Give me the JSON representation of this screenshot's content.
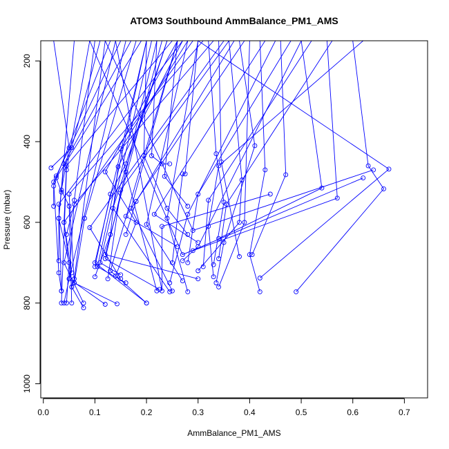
{
  "chart_data": {
    "type": "line",
    "title": "ATOM3 Southbound AmmBalance_PM1_AMS",
    "xlabel": "AmmBalance_PM1_AMS",
    "ylabel": "Pressure (mbar)",
    "xlim": [
      -0.005,
      0.745
    ],
    "ylim": [
      1035,
      150
    ],
    "y_reversed": true,
    "x_ticks": [
      0.0,
      0.1,
      0.2,
      0.3,
      0.4,
      0.5,
      0.6,
      0.7
    ],
    "x_tick_labels": [
      "0.0",
      "0.1",
      "0.2",
      "0.3",
      "0.4",
      "0.5",
      "0.6",
      "0.7"
    ],
    "y_ticks": [
      200,
      400,
      600,
      800,
      1000
    ],
    "y_tick_labels": [
      "200",
      "400",
      "600",
      "800",
      "1000"
    ],
    "series_color": "#0000ff",
    "grid": false,
    "legend": "none",
    "profiles": [
      [
        [
          0.02,
          150
        ],
        [
          0.05,
          415
        ],
        [
          0.035,
          520
        ],
        [
          0.05,
          560
        ],
        [
          0.055,
          800
        ]
      ],
      [
        [
          0.06,
          150
        ],
        [
          0.03,
          590
        ],
        [
          0.05,
          700
        ],
        [
          0.045,
          800
        ]
      ],
      [
        [
          0.09,
          150
        ],
        [
          0.045,
          470
        ],
        [
          0.035,
          800
        ]
      ],
      [
        [
          0.1,
          150
        ],
        [
          0.06,
          545
        ],
        [
          0.05,
          740
        ],
        [
          0.04,
          800
        ]
      ],
      [
        [
          0.12,
          150
        ],
        [
          0.06,
          740
        ],
        [
          0.055,
          760
        ],
        [
          0.078,
          812
        ]
      ],
      [
        [
          0.14,
          150
        ],
        [
          0.04,
          700
        ],
        [
          0.078,
          800
        ]
      ],
      [
        [
          0.16,
          150
        ],
        [
          0.05,
          740
        ],
        [
          0.12,
          803
        ]
      ],
      [
        [
          0.18,
          150
        ],
        [
          0.08,
          590
        ],
        [
          0.06,
          750
        ],
        [
          0.143,
          802
        ]
      ],
      [
        [
          0.2,
          150
        ],
        [
          0.1,
          700
        ],
        [
          0.2,
          800
        ]
      ],
      [
        [
          0.22,
          150
        ],
        [
          0.12,
          690
        ],
        [
          0.225,
          766
        ]
      ],
      [
        [
          0.24,
          150
        ],
        [
          0.135,
          565
        ],
        [
          0.245,
          772
        ]
      ],
      [
        [
          0.26,
          150
        ],
        [
          0.17,
          565
        ],
        [
          0.25,
          770
        ]
      ],
      [
        [
          0.28,
          150
        ],
        [
          0.2,
          605
        ],
        [
          0.27,
          745
        ]
      ],
      [
        [
          0.3,
          150
        ],
        [
          0.24,
          590
        ],
        [
          0.28,
          772
        ]
      ],
      [
        [
          0.32,
          150
        ],
        [
          0.335,
          430
        ],
        [
          0.35,
          550
        ],
        [
          0.33,
          705
        ]
      ],
      [
        [
          0.34,
          150
        ],
        [
          0.345,
          450
        ],
        [
          0.38,
          685
        ]
      ],
      [
        [
          0.36,
          150
        ],
        [
          0.385,
          495
        ],
        [
          0.38,
          600
        ],
        [
          0.3,
          720
        ]
      ],
      [
        [
          0.38,
          150
        ],
        [
          0.41,
          410
        ],
        [
          0.35,
          650
        ],
        [
          0.335,
          750
        ]
      ],
      [
        [
          0.4,
          150
        ],
        [
          0.39,
          600
        ],
        [
          0.34,
          760
        ]
      ],
      [
        [
          0.42,
          150
        ],
        [
          0.43,
          470
        ],
        [
          0.4,
          680
        ],
        [
          0.42,
          772
        ]
      ],
      [
        [
          0.46,
          150
        ],
        [
          0.47,
          482
        ],
        [
          0.405,
          680
        ]
      ],
      [
        [
          0.5,
          150
        ],
        [
          0.54,
          515
        ],
        [
          0.34,
          640
        ]
      ],
      [
        [
          0.55,
          150
        ],
        [
          0.57,
          540
        ],
        [
          0.29,
          670
        ]
      ],
      [
        [
          0.6,
          150
        ],
        [
          0.63,
          460
        ],
        [
          0.66,
          517
        ],
        [
          0.49,
          772
        ]
      ],
      [
        [
          0.3,
          150
        ],
        [
          0.67,
          468
        ],
        [
          0.42,
          738
        ]
      ],
      [
        [
          0.26,
          150
        ],
        [
          0.12,
          475
        ],
        [
          0.18,
          600
        ],
        [
          0.14,
          733
        ]
      ],
      [
        [
          0.28,
          150
        ],
        [
          0.15,
          418
        ],
        [
          0.16,
          475
        ],
        [
          0.22,
          770
        ]
      ],
      [
        [
          0.24,
          150
        ],
        [
          0.16,
          455
        ],
        [
          0.13,
          530
        ],
        [
          0.1,
          710
        ]
      ],
      [
        [
          0.2,
          150
        ],
        [
          0.195,
          435
        ],
        [
          0.24,
          565
        ],
        [
          0.28,
          630
        ]
      ],
      [
        [
          0.22,
          150
        ],
        [
          0.21,
          435
        ],
        [
          0.23,
          455
        ],
        [
          0.245,
          455
        ]
      ],
      [
        [
          0.3,
          150
        ],
        [
          0.275,
          480
        ],
        [
          0.27,
          480
        ],
        [
          0.25,
          700
        ]
      ],
      [
        [
          0.26,
          150
        ],
        [
          0.235,
          486
        ],
        [
          0.28,
          560
        ]
      ],
      [
        [
          0.27,
          150
        ],
        [
          0.145,
          462
        ],
        [
          0.13,
          630
        ],
        [
          0.1,
          735
        ]
      ],
      [
        [
          0.11,
          150
        ],
        [
          0.055,
          415
        ],
        [
          0.015,
          465
        ]
      ],
      [
        [
          0.13,
          150
        ],
        [
          0.025,
          490
        ],
        [
          0.035,
          525
        ]
      ],
      [
        [
          0.15,
          150
        ],
        [
          0.025,
          485
        ],
        [
          0.02,
          510
        ],
        [
          0.02,
          560
        ]
      ],
      [
        [
          0.17,
          150
        ],
        [
          0.04,
          455
        ],
        [
          0.03,
          590
        ],
        [
          0.03,
          695
        ]
      ],
      [
        [
          0.19,
          150
        ],
        [
          0.02,
          500
        ],
        [
          0.03,
          725
        ],
        [
          0.035,
          770
        ]
      ],
      [
        [
          0.25,
          150
        ],
        [
          0.045,
          460
        ],
        [
          0.04,
          600
        ],
        [
          0.055,
          725
        ]
      ],
      [
        [
          0.27,
          150
        ],
        [
          0.03,
          555
        ],
        [
          0.035,
          770
        ]
      ],
      [
        [
          0.29,
          150
        ],
        [
          0.04,
          600
        ],
        [
          0.055,
          760
        ]
      ],
      [
        [
          0.31,
          150
        ],
        [
          0.05,
          530
        ],
        [
          0.06,
          750
        ]
      ],
      [
        [
          0.33,
          150
        ],
        [
          0.06,
          555
        ],
        [
          0.045,
          630
        ]
      ],
      [
        [
          0.35,
          150
        ],
        [
          0.09,
          613
        ],
        [
          0.15,
          740
        ]
      ],
      [
        [
          0.36,
          150
        ],
        [
          0.15,
          520
        ],
        [
          0.125,
          740
        ]
      ],
      [
        [
          0.37,
          150
        ],
        [
          0.18,
          548
        ],
        [
          0.16,
          630
        ]
      ],
      [
        [
          0.39,
          150
        ],
        [
          0.16,
          585
        ],
        [
          0.26,
          660
        ]
      ],
      [
        [
          0.43,
          150
        ],
        [
          0.215,
          580
        ],
        [
          0.3,
          650
        ]
      ],
      [
        [
          0.45,
          150
        ],
        [
          0.28,
          580
        ],
        [
          0.245,
          750
        ]
      ],
      [
        [
          0.48,
          150
        ],
        [
          0.3,
          530
        ],
        [
          0.28,
          700
        ]
      ],
      [
        [
          0.52,
          150
        ],
        [
          0.32,
          545
        ],
        [
          0.31,
          710
        ]
      ],
      [
        [
          0.56,
          150
        ],
        [
          0.355,
          555
        ],
        [
          0.34,
          690
        ]
      ],
      [
        [
          0.5,
          150
        ],
        [
          0.3,
          660
        ],
        [
          0.27,
          695
        ]
      ],
      [
        [
          0.62,
          150
        ],
        [
          0.34,
          460
        ],
        [
          0.32,
          610
        ],
        [
          0.33,
          735
        ]
      ],
      [
        [
          0.26,
          150
        ],
        [
          0.13,
          720
        ],
        [
          0.2,
          800
        ]
      ],
      [
        [
          0.2,
          150
        ],
        [
          0.105,
          710
        ],
        [
          0.16,
          750
        ]
      ],
      [
        [
          0.21,
          150
        ],
        [
          0.11,
          700
        ],
        [
          0.15,
          730
        ]
      ],
      [
        [
          0.23,
          150
        ],
        [
          0.12,
          680
        ],
        [
          0.3,
          740
        ]
      ],
      [
        [
          0.09,
          150
        ],
        [
          0.27,
          680
        ],
        [
          0.62,
          490
        ]
      ],
      [
        [
          0.12,
          150
        ],
        [
          0.29,
          620
        ],
        [
          0.64,
          470
        ]
      ],
      [
        [
          0.14,
          150
        ],
        [
          0.23,
          770
        ],
        [
          0.23,
          610
        ],
        [
          0.44,
          530
        ]
      ]
    ]
  }
}
